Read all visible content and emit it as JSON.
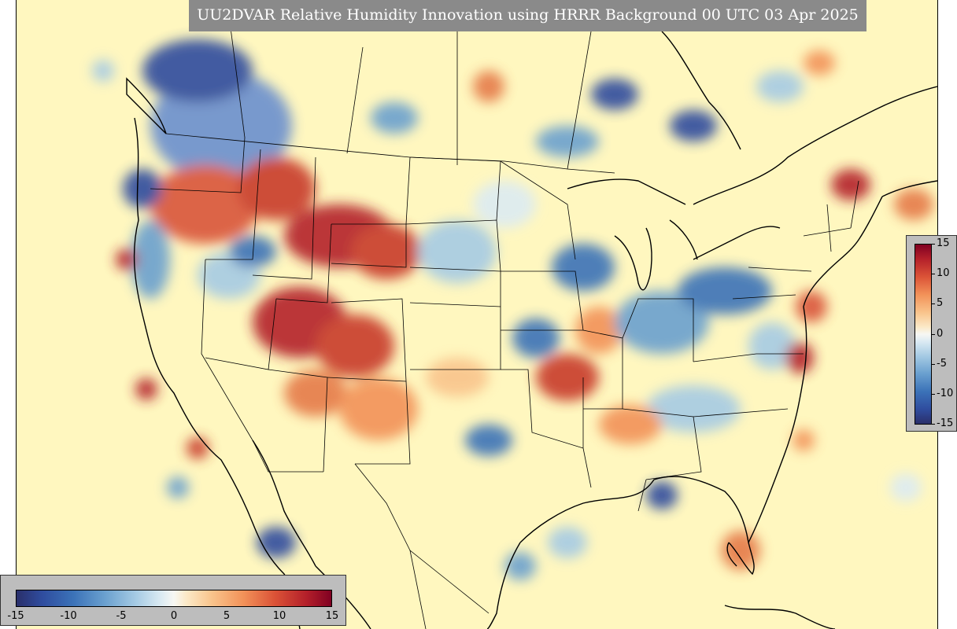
{
  "title": "UU2DVAR Relative Humidity Innovation using HRRR Background 00 UTC 03 Apr 2025",
  "colorbar": {
    "min": -15,
    "max": 15,
    "vertical_ticks": [
      "15",
      "10",
      "5",
      "0",
      "-5",
      "-10",
      "-15"
    ],
    "horizontal_ticks": [
      "-15",
      "-10",
      "-5",
      "0",
      "5",
      "10",
      "15"
    ],
    "colormap": "RdYlBu_r (blue = drier, red = moister)",
    "colors": {
      "min": "#2a2f6a",
      "neutral": "#f7f7f3",
      "max": "#800022",
      "map_background": "#fff7bf",
      "title_box": "#8a8a8a"
    }
  },
  "map": {
    "projection": "Lambert conformal",
    "region": "CONUS with southern Canada and northern Mexico",
    "boundaries": [
      "coastlines",
      "country borders",
      "state borders",
      "province borders"
    ]
  }
}
